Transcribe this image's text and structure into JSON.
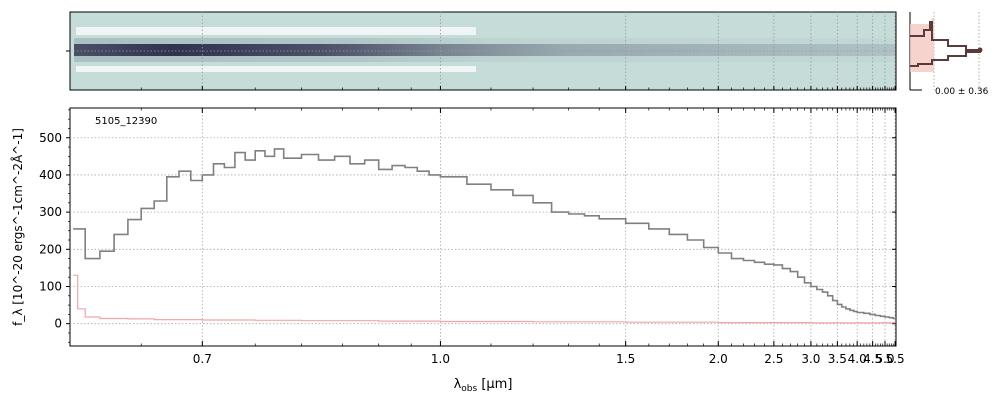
{
  "chart_data": {
    "type": "line",
    "object_label": "5105_12390",
    "xlabel_main": "λ",
    "xlabel_sub": "obs",
    "xlabel_unit": " [μm]",
    "ylabel": "f_λ [10^-20 ergs^-1cm^-2Å^-1]",
    "x_scale": "reciprocal",
    "xlim": [
      0.6,
      5.55
    ],
    "ylim": [
      -60,
      580
    ],
    "xticks": [
      0.7,
      1.0,
      1.5,
      2.0,
      2.5,
      3.0,
      3.5,
      4.0,
      4.5,
      5.0,
      5.5
    ],
    "xtick_labels": [
      "0.7",
      "1.0",
      "1.5",
      "2.0",
      "2.5",
      "3.0",
      "3.5",
      "4.0",
      "4.5",
      "5.0",
      "5.5"
    ],
    "yticks": [
      0,
      100,
      200,
      300,
      400,
      500
    ],
    "ytick_labels": [
      "0",
      "100",
      "200",
      "300",
      "400",
      "500"
    ],
    "grid": true,
    "series": [
      {
        "role": "flux",
        "color": "#808080",
        "x": [
          0.602,
          0.61,
          0.62,
          0.63,
          0.64,
          0.65,
          0.66,
          0.67,
          0.68,
          0.69,
          0.7,
          0.71,
          0.72,
          0.73,
          0.74,
          0.75,
          0.76,
          0.77,
          0.78,
          0.8,
          0.82,
          0.84,
          0.86,
          0.88,
          0.9,
          0.92,
          0.94,
          0.96,
          0.98,
          1.0,
          1.05,
          1.1,
          1.15,
          1.2,
          1.25,
          1.3,
          1.35,
          1.4,
          1.5,
          1.6,
          1.7,
          1.8,
          1.9,
          2.0,
          2.1,
          2.2,
          2.3,
          2.4,
          2.5,
          2.6,
          2.7,
          2.8,
          2.9,
          3.0,
          3.1,
          3.2,
          3.3,
          3.4,
          3.5,
          3.6,
          3.7,
          3.8,
          3.9,
          4.0,
          4.2,
          4.4,
          4.6,
          4.8,
          5.0,
          5.2,
          5.4,
          5.5
        ],
        "y": [
          255,
          175,
          195,
          240,
          280,
          310,
          330,
          395,
          410,
          385,
          400,
          430,
          420,
          460,
          440,
          465,
          450,
          470,
          445,
          455,
          440,
          450,
          430,
          440,
          415,
          425,
          420,
          410,
          400,
          395,
          375,
          360,
          345,
          325,
          300,
          295,
          290,
          282,
          270,
          255,
          240,
          225,
          205,
          190,
          175,
          170,
          165,
          160,
          158,
          148,
          140,
          125,
          110,
          100,
          92,
          85,
          75,
          62,
          52,
          45,
          40,
          36,
          33,
          30,
          28,
          25,
          22,
          20,
          18,
          16,
          14,
          12
        ]
      },
      {
        "role": "error",
        "color": "#f4a6a6",
        "x": [
          0.602,
          0.605,
          0.61,
          0.62,
          0.64,
          0.66,
          0.7,
          0.75,
          0.8,
          0.9,
          1.0,
          1.2,
          1.5,
          2.0,
          2.5,
          3.0,
          3.5,
          4.0,
          4.5,
          5.0,
          5.4,
          5.5
        ],
        "y": [
          130,
          40,
          18,
          14,
          13,
          11,
          10,
          9,
          8,
          7,
          6,
          5,
          4,
          3,
          3,
          2,
          2,
          2,
          2,
          2,
          3,
          8
        ]
      }
    ],
    "profile_panel": {
      "label": "0.00 ± 0.36",
      "line_color": "#5a3b3b",
      "fill_color": "#f5c8c0"
    },
    "spectrum2d": {
      "cmap_low": "#c5dcd9",
      "cmap_high": "#2a2a48"
    }
  }
}
